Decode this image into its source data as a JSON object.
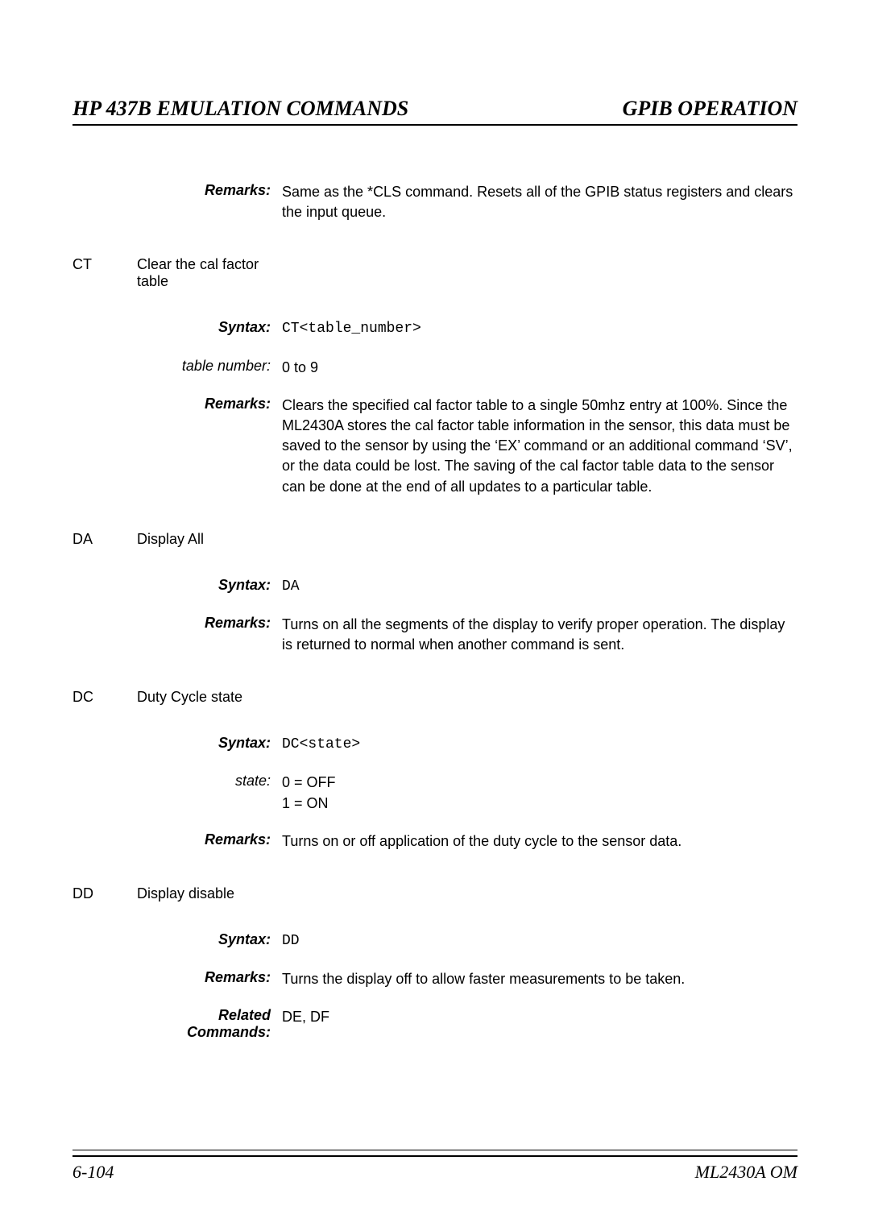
{
  "header": {
    "left": "HP 437B EMULATION COMMANDS",
    "right": "GPIB OPERATION"
  },
  "intro": {
    "remarks_label": "Remarks:",
    "remarks_value": "Same as the *CLS command. Resets all of the GPIB status registers and clears the input queue."
  },
  "commands": [
    {
      "code": "CT",
      "title": "Clear the cal factor table",
      "rows": [
        {
          "label": "Syntax:",
          "label_style": "bold-italic",
          "value": "CT<table_number>",
          "value_style": "mono"
        },
        {
          "label": "table number:",
          "label_style": "italic",
          "value": "0 to 9",
          "value_style": ""
        },
        {
          "label": "Remarks:",
          "label_style": "bold-italic",
          "value": "Clears the specified cal factor table to a single 50mhz entry at 100%. Since the ML2430A stores the cal factor table information in the sensor, this data must be saved to the sensor by using the ‘EX’ command or an additional command ‘SV’, or the data could be lost. The saving of the cal factor table data to the sensor can be done at the end of all updates to a particular table.",
          "value_style": ""
        }
      ]
    },
    {
      "code": "DA",
      "title": "Display All",
      "rows": [
        {
          "label": "Syntax:",
          "label_style": "bold-italic",
          "value": "DA",
          "value_style": "mono"
        },
        {
          "label": "Remarks:",
          "label_style": "bold-italic",
          "value": "Turns on all the segments of the display to verify proper operation. The display is returned to normal when another command is sent.",
          "value_style": ""
        }
      ]
    },
    {
      "code": "DC",
      "title": "Duty Cycle state",
      "rows": [
        {
          "label": "Syntax:",
          "label_style": "bold-italic",
          "value": "DC<state>",
          "value_style": "mono"
        },
        {
          "label": "state:",
          "label_style": "italic",
          "value": "0 = OFF\n1 = ON",
          "value_style": ""
        },
        {
          "label": "Remarks:",
          "label_style": "bold-italic",
          "value": "Turns on or off application of the duty cycle to the sensor data.",
          "value_style": ""
        }
      ]
    },
    {
      "code": "DD",
      "title": "Display disable",
      "rows": [
        {
          "label": "Syntax:",
          "label_style": "bold-italic",
          "value": "DD",
          "value_style": "mono"
        },
        {
          "label": "Remarks:",
          "label_style": "bold-italic",
          "value": "Turns the display off to allow faster measurements to be taken.",
          "value_style": ""
        },
        {
          "label": "Related Commands:",
          "label_style": "bold-italic",
          "value": "DE, DF",
          "value_style": ""
        }
      ]
    }
  ],
  "footer": {
    "left": "6-104",
    "right": "ML2430A OM"
  }
}
